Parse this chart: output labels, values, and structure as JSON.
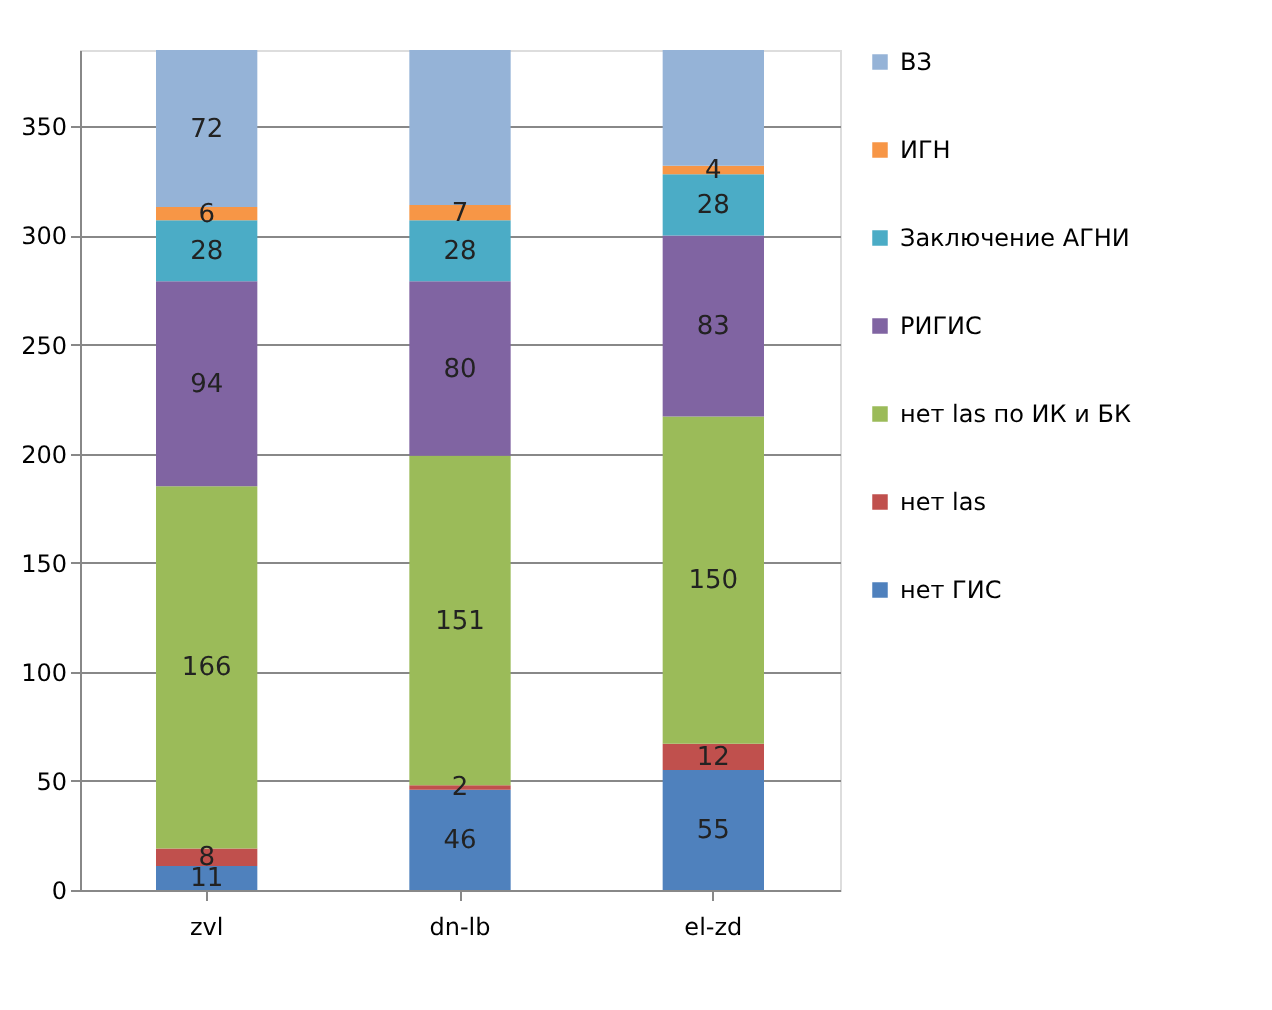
{
  "chart_data": {
    "type": "bar",
    "stacked": true,
    "categories": [
      "zvl",
      "dn-lb",
      "el-zd"
    ],
    "series": [
      {
        "name": "нет ГИС",
        "color": "#4f81bd",
        "values": [
          11,
          46,
          55
        ],
        "value_labels": [
          "11",
          "46",
          "55"
        ]
      },
      {
        "name": "нет las",
        "color": "#c0504d",
        "values": [
          8,
          2,
          12
        ],
        "value_labels": [
          "8",
          "2",
          "12"
        ]
      },
      {
        "name": "нет  las по ИК и БК",
        "color": "#9bbb59",
        "values": [
          166,
          151,
          150
        ],
        "value_labels": [
          "166",
          "151",
          "150"
        ]
      },
      {
        "name": "РИГИС",
        "color": "#8064a2",
        "values": [
          94,
          80,
          83
        ],
        "value_labels": [
          "94",
          "80",
          "83"
        ]
      },
      {
        "name": "Заключение АГНИ",
        "color": "#4bacc6",
        "values": [
          28,
          28,
          28
        ],
        "value_labels": [
          "28",
          "28",
          "28"
        ]
      },
      {
        "name": "ИГН",
        "color": "#f79646",
        "values": [
          6,
          7,
          4
        ],
        "value_labels": [
          "6",
          "7",
          "4"
        ]
      },
      {
        "name": "ВЗ",
        "color": "#95b3d7",
        "values": [
          72,
          71,
          53
        ],
        "value_labels": [
          "72",
          null,
          null
        ]
      }
    ],
    "ylim": [
      0,
      385
    ],
    "yticks": [
      0,
      50,
      100,
      150,
      200,
      250,
      300,
      350
    ],
    "grid": "y",
    "legend": "right"
  }
}
